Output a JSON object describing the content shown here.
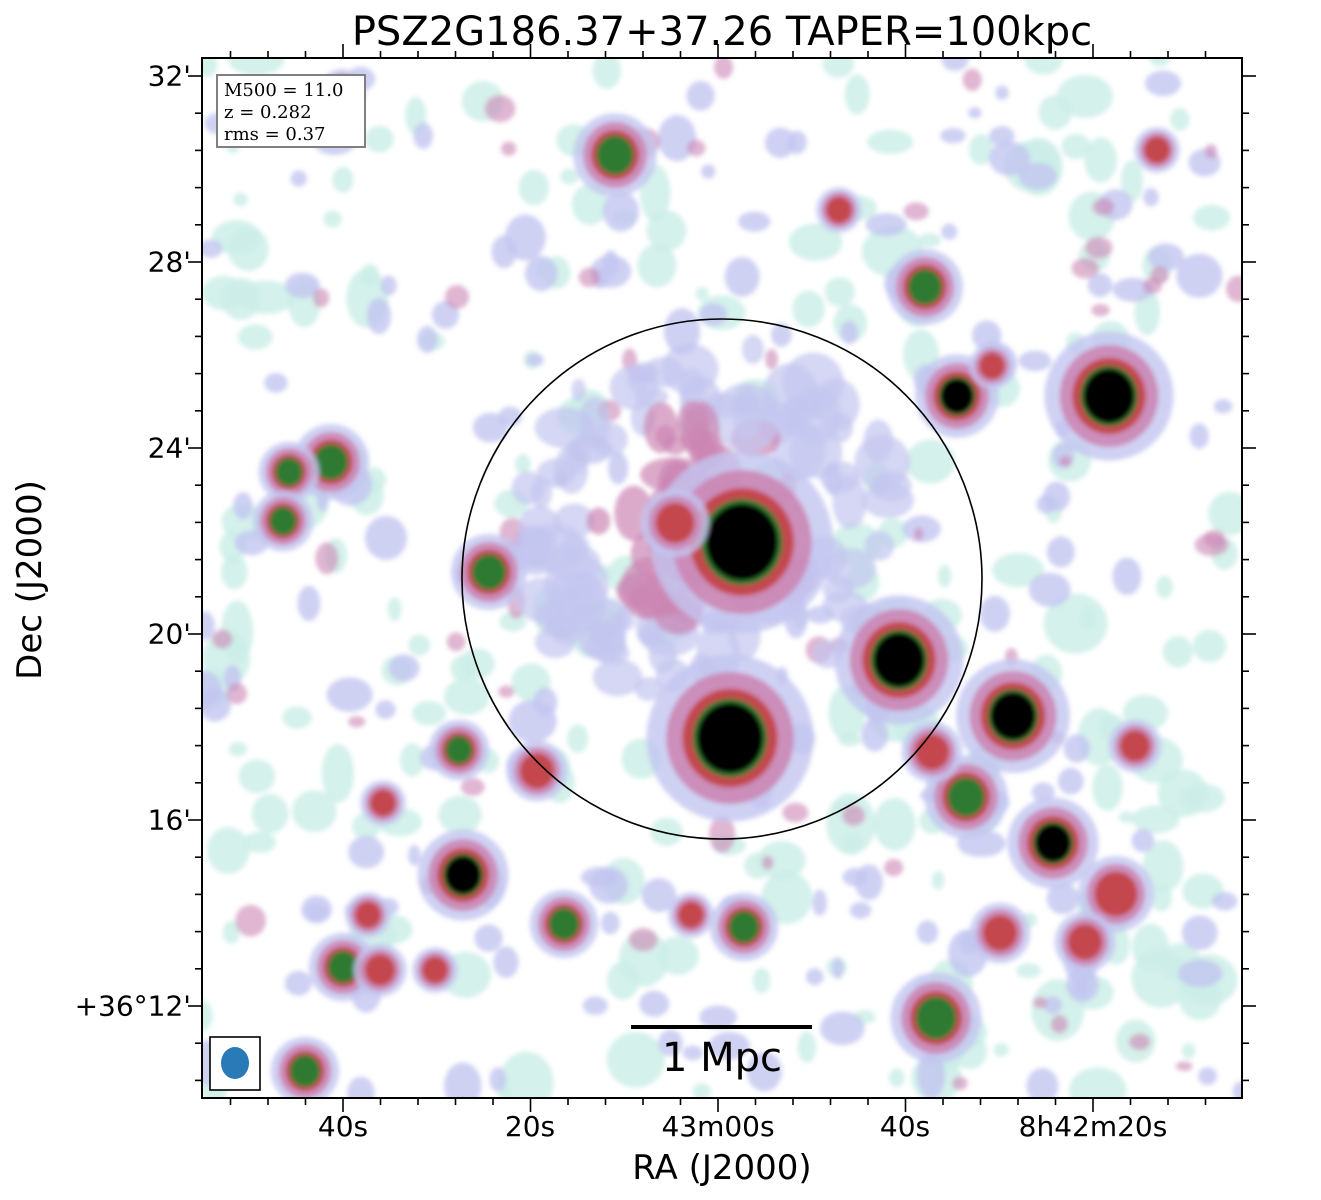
{
  "title": "PSZ2G186.37+37.26 TAPER=100kpc",
  "axes": {
    "ylabel": "Dec (J2000)",
    "xlabel": "RA (J2000)",
    "yticks": [
      "32'",
      "28'",
      "24'",
      "20'",
      "16'",
      "+36°12'"
    ],
    "xticks": [
      "40s",
      "20s",
      "43m00s",
      "40s",
      "8h42m20s"
    ]
  },
  "info": {
    "line1": "M500 = 11.0",
    "line2": "z = 0.282",
    "line3": "rms = 0.37"
  },
  "scalebar": {
    "label": "1 Mpc"
  },
  "colors": {
    "faint": "#cdeee8",
    "light": "#c3c6f0",
    "pink": "#cc86b4",
    "red": "#c4464e",
    "green": "#2f7a32",
    "core": "#000000",
    "beam": "#2a7ab8"
  }
}
